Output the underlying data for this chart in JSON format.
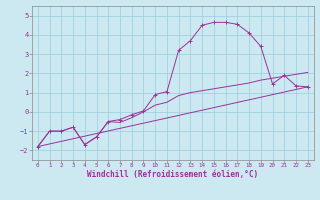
{
  "xlabel": "Windchill (Refroidissement éolien,°C)",
  "background_color": "#cce8f0",
  "grid_color": "#99cce0",
  "line_color": "#993399",
  "spine_color": "#888888",
  "xlim": [
    -0.5,
    23.5
  ],
  "ylim": [
    -2.5,
    5.5
  ],
  "yticks": [
    -2,
    -1,
    0,
    1,
    2,
    3,
    4,
    5
  ],
  "xticks": [
    0,
    1,
    2,
    3,
    4,
    5,
    6,
    7,
    8,
    9,
    10,
    11,
    12,
    13,
    14,
    15,
    16,
    17,
    18,
    19,
    20,
    21,
    22,
    23
  ],
  "line1_x": [
    0,
    1,
    2,
    3,
    4,
    5,
    6,
    7,
    8,
    9,
    10,
    11,
    12,
    13,
    14,
    15,
    16,
    17,
    18,
    19,
    20,
    21,
    22,
    23
  ],
  "line1_y": [
    -1.8,
    -1.0,
    -1.0,
    -0.8,
    -1.7,
    -1.3,
    -0.5,
    -0.4,
    -0.15,
    0.05,
    0.9,
    1.05,
    3.2,
    3.7,
    4.5,
    4.65,
    4.65,
    4.55,
    4.1,
    3.4,
    1.45,
    1.9,
    1.35,
    1.3
  ],
  "line2_x": [
    0,
    1,
    2,
    3,
    4,
    5,
    6,
    7,
    8,
    9,
    10,
    11,
    12,
    13,
    14,
    15,
    16,
    17,
    18,
    19,
    20,
    21,
    22,
    23
  ],
  "line2_y": [
    -1.8,
    -1.0,
    -1.0,
    -0.8,
    -1.7,
    -1.3,
    -0.5,
    -0.55,
    -0.3,
    0.0,
    0.35,
    0.5,
    0.85,
    1.0,
    1.1,
    1.2,
    1.3,
    1.4,
    1.5,
    1.65,
    1.75,
    1.85,
    1.95,
    2.05
  ],
  "line3_x": [
    0,
    23
  ],
  "line3_y": [
    -1.8,
    1.3
  ],
  "xlabel_fontsize": 5.5,
  "tick_fontsize_x": 4.2,
  "tick_fontsize_y": 5.0
}
